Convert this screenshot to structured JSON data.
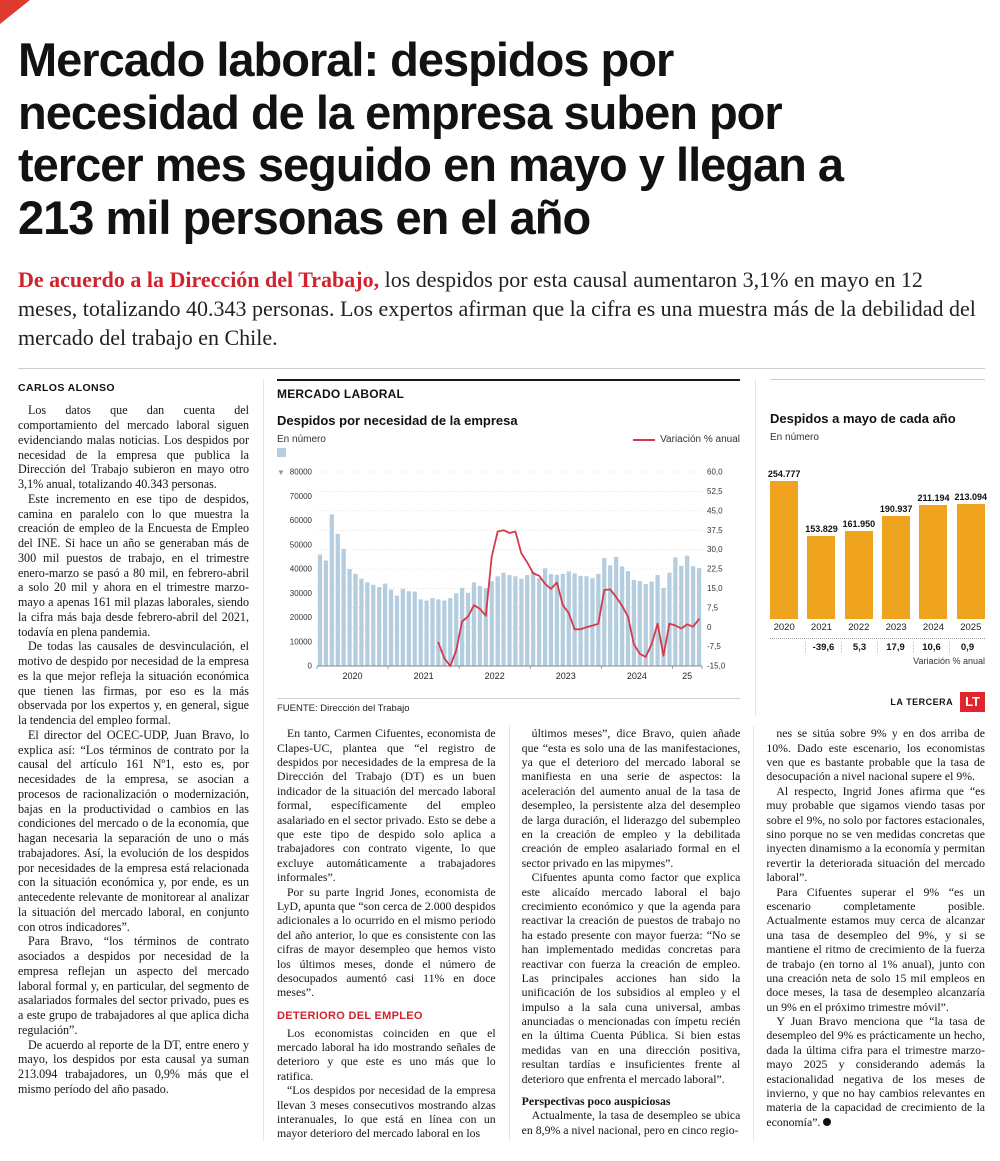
{
  "page": {
    "headline": "Mercado laboral: despidos por necesidad de la empresa suben por tercer mes seguido en mayo y llegan a 213 mil personas en el año",
    "lead_highlight": "De acuerdo a la Dirección del Trabajo,",
    "lead_text": " los despidos por esta causal aumentaron 3,1% en mayo en 12 meses, totalizando 40.343 personas. Los expertos afirman que la cifra es una muestra más de la debilidad del mercado del trabajo en Chile.",
    "byline": "CARLOS ALONSO",
    "section_kicker": "MERCADO LABORAL"
  },
  "article": {
    "columns": [
      {
        "id": "col-1",
        "blocks": [
          {
            "k": "p",
            "t": "Los datos que dan cuenta del comportamiento del mercado laboral siguen evidenciando malas noticias. Los despidos por necesidad de la empresa que publica la Dirección del Trabajo subieron en mayo otro 3,1% anual, totalizando 40.343 personas."
          },
          {
            "k": "p",
            "t": "Este incremento en ese tipo de despidos, camina en paralelo con lo que muestra la creación de empleo de la Encuesta de Empleo del INE. Si hace un año se generaban más de 300 mil puestos de trabajo, en el trimestre enero-marzo se pasó a 80 mil, en febrero-abril a solo 20 mil y ahora en el trimestre marzo-mayo a apenas 161 mil plazas laborales, siendo la cifra más baja desde febrero-abril del 2021, todavía en plena pandemia."
          },
          {
            "k": "p",
            "t": "De todas las causales de desvinculación, el motivo de despido por necesidad de la empresa es la que mejor refleja la situación económica que tienen las firmas, por eso es la más observada por los expertos y, en general, sigue la tendencia del empleo formal."
          },
          {
            "k": "p",
            "t": "El director del OCEC-UDP, Juan Bravo, lo explica así: “Los términos de contrato por la causal del artículo 161 Nº1, esto es, por necesidades de la empresa, se asocian a procesos de racionalización o modernización, bajas en la productividad o cambios en las condiciones del mercado o de la economía, que hagan necesaria la separación de uno o más trabajadores. Así, la evolución de los despidos por necesidades de la empresa está relacionada con la situación económica y, por ende, es un antecedente relevante de monitorear al analizar la situación del mercado laboral, en conjunto con otros indicadores”."
          },
          {
            "k": "p",
            "t": "Para Bravo, “los términos de contrato asociados a despidos por necesidad de la empresa reflejan un aspecto del mercado laboral formal y, en particular, del segmento de asalariados formales del sector privado, pues es a este grupo de trabajadores al que aplica dicha regulación”."
          },
          {
            "k": "p",
            "t": "De acuerdo al reporte de la DT, entre enero y mayo, los despidos por esta causal ya suman 213.094 trabajadores, un 0,9% más que el mismo período del año pasado."
          }
        ]
      },
      {
        "id": "col-2",
        "blocks": [
          {
            "k": "p",
            "t": "En tanto, Carmen Cifuentes, economista de Clapes-UC, plantea que “el registro de despidos por necesidades de la empresa de la Dirección del Trabajo (DT) es un buen indicador de la situación del mercado laboral formal, específicamente del empleo asalariado en el sector privado. Esto se debe a que este tipo de despido solo aplica a trabajadores con contrato vigente, lo que excluye automáticamente a trabajadores informales”."
          },
          {
            "k": "p",
            "t": "Por su parte Ingrid Jones, economista de LyD, apunta que “son cerca de 2.000 despidos adicionales a lo ocurrido en el mismo periodo del año anterior, lo que es consistente con las cifras de mayor desempleo que hemos visto los últimos meses, donde el número de desocupados aumentó casi 11% en doce meses”."
          },
          {
            "k": "sub_red",
            "t": "DETERIORO DEL EMPLEO"
          },
          {
            "k": "p",
            "t": "Los economistas coinciden en que el mercado laboral ha ido mostrando señales de deterioro y que este es uno más que lo ratifica."
          },
          {
            "k": "p",
            "t": "“Los despidos por necesidad de la empresa llevan 3 meses consecutivos mostrando alzas interanuales, lo que está en línea con un mayor deterioro del mercado laboral en los"
          }
        ]
      },
      {
        "id": "col-3",
        "blocks": [
          {
            "k": "p",
            "t": "últimos meses”, dice Bravo, quien añade que “esta es solo una de las manifestaciones, ya que el deterioro del mercado laboral se manifiesta en una serie de aspectos: la aceleración del aumento anual de la tasa de desempleo, la persistente alza del desempleo de larga duración, el liderazgo del subempleo en la creación de empleo y la debilitada creación de empleo asalariado formal en el sector privado en las mipymes”."
          },
          {
            "k": "p",
            "t": "Cifuentes apunta como factor que explica este alicaído mercado laboral el bajo crecimiento económico y que la agenda para reactivar la creación de puestos de trabajo no ha estado presente con mayor fuerza: “No se han implementado medidas concretas para reactivar con fuerza la creación de empleo. Las principales acciones han sido la unificación de los subsidios al empleo y el impulso a la sala cuna universal, ambas anunciadas o mencionadas con ímpetu recién en la última Cuenta Pública. Si bien estas medidas van en una dirección positiva, resultan tardías e insuficientes frente al deterioro que enfrenta el mercado laboral”."
          },
          {
            "k": "sub_bold",
            "t": "Perspectivas poco auspiciosas"
          },
          {
            "k": "p",
            "t": "Actualmente, la tasa de desempleo se ubica en 8,9% a nivel nacional, pero en cinco regio-"
          }
        ]
      },
      {
        "id": "col-4",
        "blocks": [
          {
            "k": "p",
            "t": "nes se sitúa sobre 9% y en dos arriba de 10%. Dado este escenario, los economistas ven que es bastante probable que la tasa de desocupación a nivel nacional supere el 9%."
          },
          {
            "k": "p",
            "t": "Al respecto, Ingrid Jones afirma que “es muy probable que sigamos viendo tasas por sobre el 9%, no solo por factores estacionales, sino porque no se ven medidas concretas que inyecten dinamismo a la economía y permitan revertir la deteriorada situación del mercado laboral”."
          },
          {
            "k": "p",
            "t": "Para Cifuentes superar el 9% “es un escenario completamente posible. Actualmente estamos muy cerca de alcanzar una tasa de desempleo del 9%, y si se mantiene el ritmo de crecimiento de la fuerza de trabajo (en torno al 1% anual), junto con una creación neta de solo 15 mil empleos en doce meses, la tasa de desempleo alcanzaría un 9% en el próximo trimestre móvil”."
          },
          {
            "k": "p",
            "end": true,
            "t": "Y Juan Bravo menciona que “la tasa de desempleo del 9% es prácticamente un hecho, dada la última cifra para el trimestre marzo-mayo 2025 y considerando además la estacionalidad negativa de los meses de invierno, y que no hay cambios relevantes en materia de la capacidad de crecimiento de la economía”."
          }
        ]
      }
    ]
  },
  "chart_data": [
    {
      "type": "bar",
      "combo": "bar+line",
      "title": "Despidos por necesidad de la empresa",
      "unit_label": "En número",
      "line_label": "Variación % anual",
      "source": "FUENTE: Dirección del Trabajo",
      "bar_color": "#b5cedf",
      "line_color": "#d63a4a",
      "x_year_labels": [
        "2020",
        "2021",
        "2022",
        "2023",
        "2024",
        "25"
      ],
      "y_left": {
        "min": 0,
        "max": 80000,
        "tick_values": [
          80000,
          70000,
          60000,
          50000,
          40000,
          30000,
          20000,
          10000,
          0
        ],
        "tick_labels": [
          "80000",
          "70000",
          "60000",
          "50000",
          "40000",
          "30000",
          "20000",
          "10000",
          "0"
        ]
      },
      "y_right": {
        "min": -15,
        "max": 60,
        "tick_values": [
          60,
          52.5,
          45,
          37.5,
          30,
          22.5,
          15,
          7.5,
          0,
          -7.5,
          -15
        ],
        "tick_labels": [
          "60,0",
          "52,5",
          "45,0",
          "37,5",
          "30,0",
          "22,5",
          "15,0",
          "7,5",
          "0",
          "-7,5",
          "-15,0"
        ]
      },
      "bars_monthly": [
        46000,
        43500,
        62500,
        54500,
        48300,
        40000,
        38000,
        36000,
        34500,
        33500,
        32500,
        34000,
        31500,
        29000,
        31800,
        30800,
        30700,
        27500,
        27000,
        28000,
        27500,
        27000,
        28000,
        30000,
        32200,
        30200,
        34500,
        33000,
        32050,
        35000,
        37000,
        38500,
        37500,
        37000,
        36000,
        37500,
        38900,
        36200,
        40300,
        37900,
        37600,
        38000,
        39000,
        38200,
        37200,
        37000,
        36200,
        38000,
        44500,
        41500,
        45000,
        41064,
        39130,
        35500,
        35000,
        33800,
        34800,
        37500,
        32200,
        38500,
        44800,
        41300,
        45500,
        41151,
        40343
      ],
      "line_monthly": [
        null,
        null,
        null,
        null,
        null,
        null,
        null,
        null,
        null,
        null,
        null,
        null,
        null,
        null,
        null,
        null,
        null,
        null,
        null,
        null,
        -6,
        -12,
        -15,
        -9,
        2.2,
        4.1,
        8.5,
        7.1,
        4.4,
        27.3,
        37.0,
        37.5,
        36.4,
        37.0,
        28.6,
        25.0,
        20.8,
        19.9,
        16.8,
        14.8,
        17.3,
        8.6,
        5.4,
        -0.8,
        -0.8,
        0.0,
        0.6,
        1.3,
        14.4,
        14.6,
        11.7,
        8.3,
        4.1,
        -6.6,
        -10.3,
        -11.5,
        -6.5,
        1.4,
        -11.0,
        1.3,
        0.7,
        -0.5,
        1.1,
        0.2,
        3.1
      ]
    },
    {
      "type": "bar",
      "title": "Despidos a mayo de cada año",
      "unit_label": "En número",
      "categories": [
        "2020",
        "2021",
        "2022",
        "2023",
        "2024",
        "2025"
      ],
      "values": [
        254777,
        153829,
        161950,
        190937,
        211194,
        213094
      ],
      "value_labels": [
        "254.777",
        "153.829",
        "161.950",
        "190.937",
        "211.194",
        "213.094"
      ],
      "variation_labels": [
        "",
        "-39,6",
        "5,3",
        "17,9",
        "10,6",
        "0,9"
      ],
      "variation_caption": "Variación % anual",
      "bar_color": "#f0a31e",
      "credit": "LA TERCERA",
      "logo_text": "LT"
    }
  ]
}
